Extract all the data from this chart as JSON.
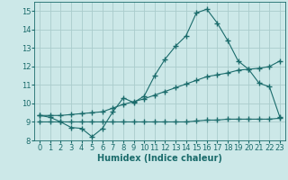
{
  "xlabel": "Humidex (Indice chaleur)",
  "bg_color": "#cce8e8",
  "grid_color": "#aacccc",
  "line_color": "#1a6b6b",
  "xlim": [
    -0.5,
    23.5
  ],
  "ylim": [
    8,
    15.5
  ],
  "xticks": [
    0,
    1,
    2,
    3,
    4,
    5,
    6,
    7,
    8,
    9,
    10,
    11,
    12,
    13,
    14,
    15,
    16,
    17,
    18,
    19,
    20,
    21,
    22,
    23
  ],
  "yticks": [
    8,
    9,
    10,
    11,
    12,
    13,
    14,
    15
  ],
  "line1_x": [
    0,
    1,
    2,
    3,
    4,
    5,
    6,
    7,
    8,
    9,
    10,
    11,
    12,
    13,
    14,
    15,
    16,
    17,
    18,
    19,
    20,
    21,
    22,
    23
  ],
  "line1_y": [
    9.35,
    9.25,
    9.0,
    8.7,
    8.65,
    8.2,
    8.65,
    9.55,
    10.3,
    10.05,
    10.4,
    11.5,
    12.4,
    13.1,
    13.65,
    14.9,
    15.1,
    14.35,
    13.4,
    12.3,
    11.85,
    11.1,
    10.9,
    9.25
  ],
  "line2_x": [
    0,
    1,
    2,
    3,
    4,
    5,
    6,
    7,
    8,
    9,
    10,
    11,
    12,
    13,
    14,
    15,
    16,
    17,
    18,
    19,
    20,
    21,
    22,
    23
  ],
  "line2_y": [
    9.35,
    9.35,
    9.35,
    9.4,
    9.45,
    9.5,
    9.55,
    9.75,
    9.95,
    10.1,
    10.25,
    10.45,
    10.65,
    10.85,
    11.05,
    11.25,
    11.45,
    11.55,
    11.65,
    11.8,
    11.85,
    11.9,
    12.0,
    12.3
  ],
  "line3_x": [
    0,
    1,
    2,
    3,
    4,
    5,
    6,
    7,
    8,
    9,
    10,
    11,
    12,
    13,
    14,
    15,
    16,
    17,
    18,
    19,
    20,
    21,
    22,
    23
  ],
  "line3_y": [
    9.0,
    9.0,
    9.0,
    9.0,
    9.0,
    9.0,
    9.0,
    9.0,
    9.0,
    9.0,
    9.0,
    9.0,
    9.0,
    9.0,
    9.0,
    9.05,
    9.1,
    9.1,
    9.15,
    9.15,
    9.15,
    9.15,
    9.15,
    9.2
  ],
  "font_size_label": 7,
  "font_size_tick": 6,
  "marker": "+",
  "marker_size": 4,
  "linewidth": 0.8
}
